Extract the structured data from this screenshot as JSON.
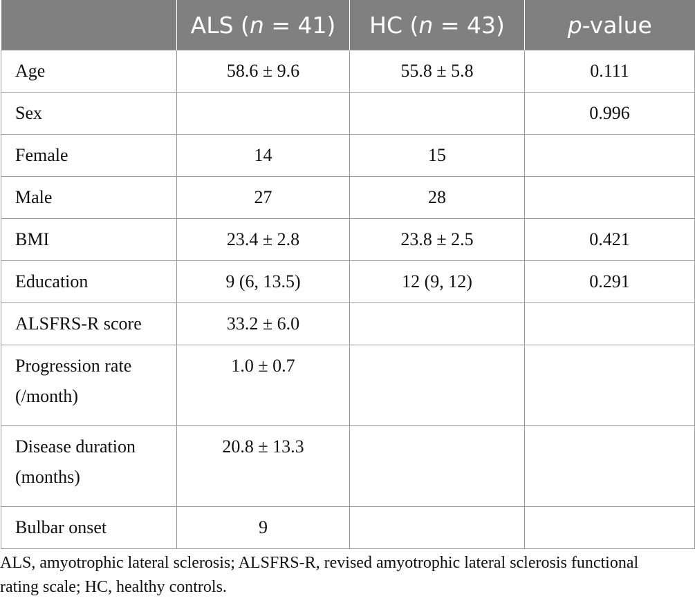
{
  "table": {
    "header": [
      [
        "ALS (",
        "n",
        " = 41)"
      ],
      [
        "HC (",
        "n",
        " = 43)"
      ],
      [
        "p",
        "-value"
      ]
    ],
    "rows": [
      [
        "Age",
        "58.6 ± 9.6",
        "55.8 ± 5.8",
        "0.111"
      ],
      [
        "Sex",
        null,
        null,
        "0.996"
      ],
      [
        "Female",
        "14",
        "15",
        null
      ],
      [
        "Male",
        "27",
        "28",
        null
      ],
      [
        "BMI",
        "23.4 ± 2.8",
        "23.8 ± 2.5",
        "0.421"
      ],
      [
        "Education",
        "9 (6, 13.5)",
        "12 (9, 12)",
        "0.291"
      ],
      [
        "ALSFRS-R score",
        "33.2 ± 6.0",
        null,
        null
      ],
      [
        "Progression rate (/month)",
        "1.0 ± 0.7",
        null,
        null
      ],
      [
        "Disease duration (months)",
        "20.8 ± 13.3",
        null,
        null
      ],
      [
        "Bulbar onset",
        "9",
        null,
        null
      ]
    ]
  },
  "footnote": "ALS, amyotrophic lateral sclerosis; ALSFRS-R, revised amyotrophic lateral sclerosis functional rating scale; HC, healthy controls."
}
